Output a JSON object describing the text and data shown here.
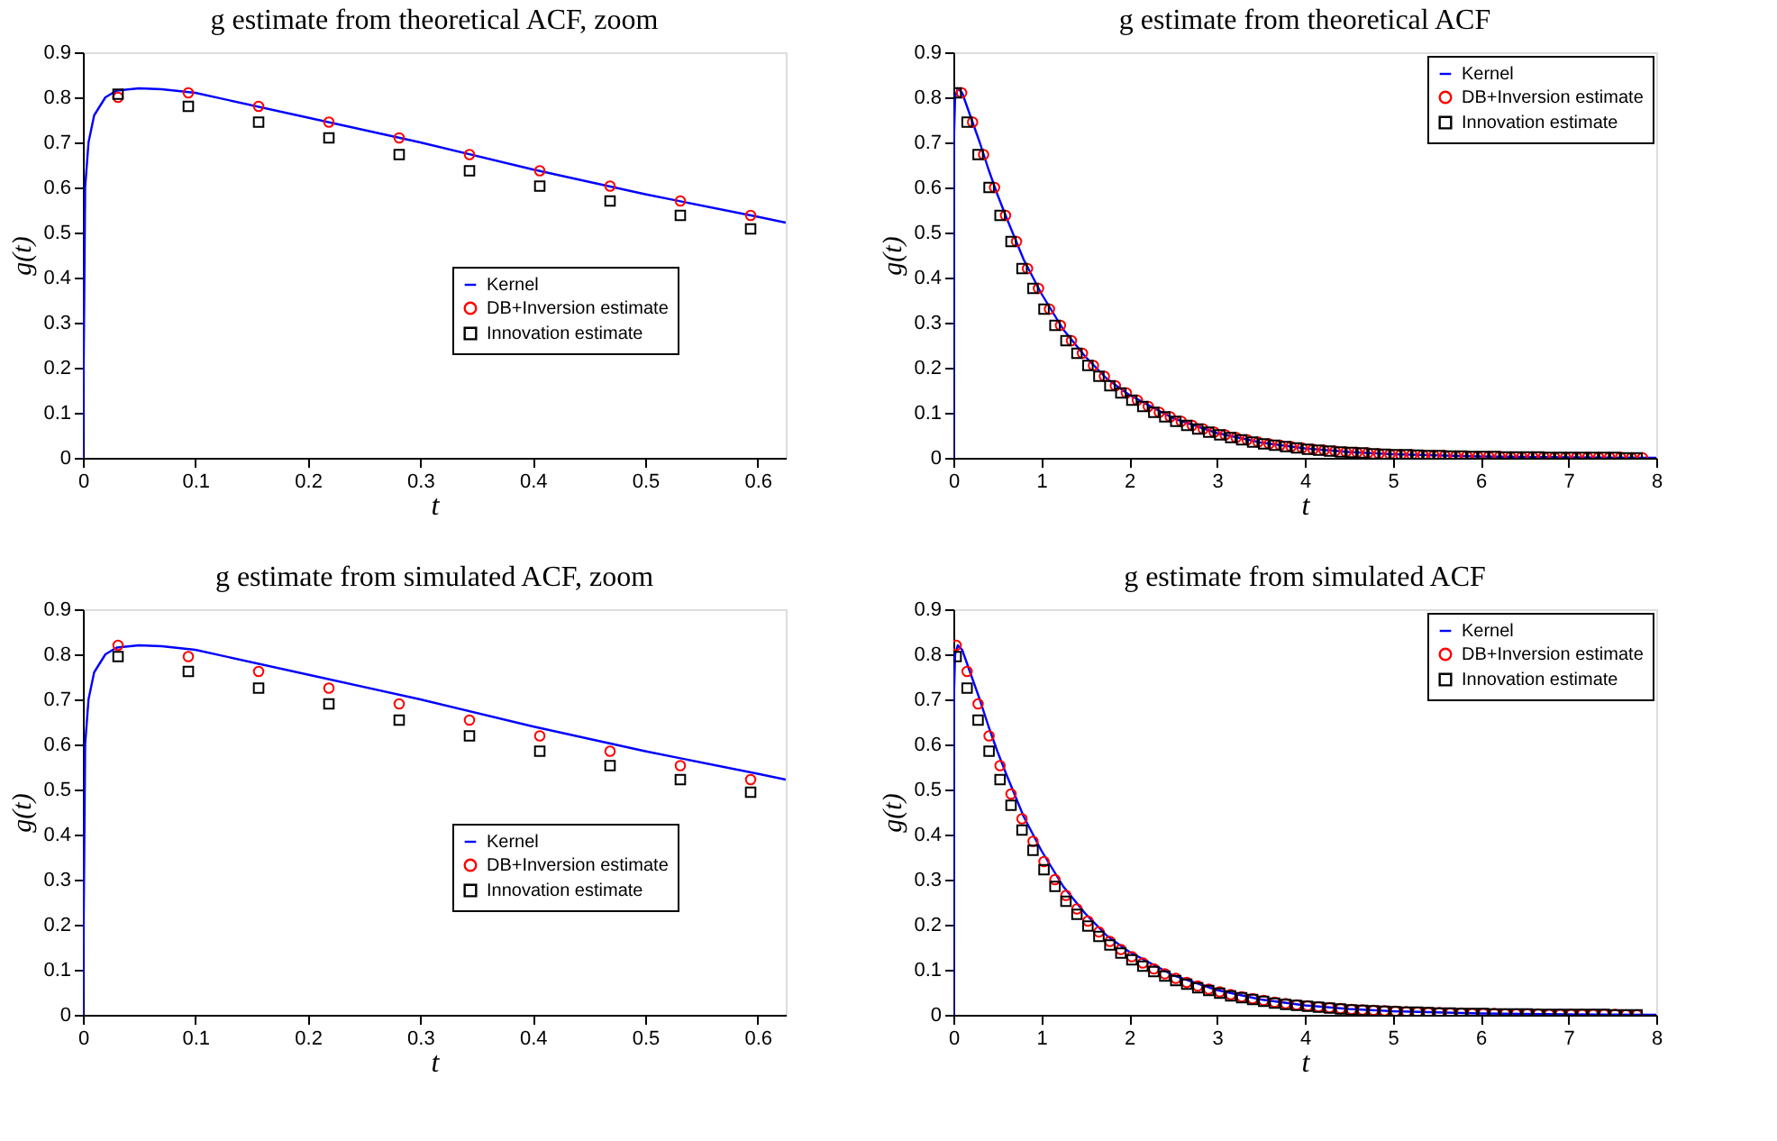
{
  "chart_data": [
    {
      "type": "line",
      "title": "g estimate from theoretical ACF, zoom",
      "xlabel": "t",
      "ylabel": "g(t)",
      "xlim": [
        0,
        0.625
      ],
      "xticks": [
        0,
        0.1,
        0.2,
        0.3,
        0.4,
        0.5,
        0.6
      ],
      "ylim": [
        0,
        0.9
      ],
      "yticks": [
        0,
        0.1,
        0.2,
        0.3,
        0.4,
        0.5,
        0.6,
        0.7,
        0.8,
        0.9
      ],
      "legend": "right",
      "x": [
        0.03125,
        0.09375,
        0.15625,
        0.21875,
        0.28125,
        0.34375,
        0.40625,
        0.46875,
        0.53125,
        0.59375
      ],
      "series": [
        {
          "name": "Kernel",
          "type": "line",
          "color": "#0000ff",
          "x": [
            0,
            0.002,
            0.005,
            0.01,
            0.02,
            0.03,
            0.05,
            0.07,
            0.1,
            0.2,
            0.3,
            0.4,
            0.5,
            0.6,
            0.625
          ],
          "values": [
            0,
            0.6,
            0.7,
            0.76,
            0.8,
            0.815,
            0.82,
            0.818,
            0.81,
            0.755,
            0.7,
            0.64,
            0.585,
            0.535,
            0.522
          ]
        },
        {
          "name": "DB+Inversion estimate",
          "type": "scatter",
          "marker": "circle",
          "color": "#ff0000",
          "values": [
            0.8,
            0.81,
            0.78,
            0.745,
            0.71,
            0.673,
            0.637,
            0.603,
            0.57,
            0.538
          ]
        },
        {
          "name": "Innovation estimate",
          "type": "scatter",
          "marker": "square",
          "color": "#000000",
          "values": [
            0.807,
            0.78,
            0.745,
            0.71,
            0.673,
            0.637,
            0.603,
            0.57,
            0.538,
            0.508
          ]
        }
      ]
    },
    {
      "type": "line",
      "title": "g estimate from theoretical ACF",
      "xlabel": "t",
      "ylabel": "g(t)",
      "xlim": [
        0,
        8
      ],
      "xticks": [
        0,
        1,
        2,
        3,
        4,
        5,
        6,
        7,
        8
      ],
      "ylim": [
        0,
        0.9
      ],
      "yticks": [
        0,
        0.1,
        0.2,
        0.3,
        0.4,
        0.5,
        0.6,
        0.7,
        0.8,
        0.9
      ],
      "legend": "top right",
      "series": [
        {
          "name": "Kernel",
          "type": "line",
          "color": "#0000ff",
          "x": [
            0,
            0.005,
            0.02,
            0.05,
            0.1,
            0.2,
            0.3,
            0.4,
            0.5,
            0.6,
            0.8,
            1,
            1.25,
            1.5,
            1.75,
            2,
            2.5,
            3,
            3.5,
            4,
            4.5,
            5,
            6,
            7,
            8
          ],
          "values": [
            0,
            0.7,
            0.8,
            0.82,
            0.81,
            0.755,
            0.7,
            0.64,
            0.585,
            0.535,
            0.44,
            0.365,
            0.285,
            0.225,
            0.175,
            0.14,
            0.088,
            0.055,
            0.034,
            0.021,
            0.013,
            0.008,
            0.003,
            0.001,
            0
          ]
        },
        {
          "name": "DB+Inversion estimate",
          "type": "scatter",
          "marker": "circle",
          "color": "#ff0000",
          "x": [
            0.09375,
            0.21875,
            0.34375,
            0.46875,
            0.59375,
            0.71875,
            0.84375,
            0.96875,
            1.09375,
            1.21875,
            1.34375,
            1.46875,
            1.59375,
            1.71875,
            1.84375,
            1.96875,
            2.09375,
            2.21875,
            2.34375,
            2.46875,
            2.59375,
            2.71875,
            2.84375,
            2.96875,
            3.09375,
            3.21875,
            3.34375,
            3.46875,
            3.59375,
            3.71875,
            3.84375,
            3.96875,
            4.09375,
            4.21875,
            4.34375,
            4.46875,
            4.59375,
            4.71875,
            4.84375,
            4.96875,
            5.09375,
            5.21875,
            5.34375,
            5.46875,
            5.59375,
            5.71875,
            5.84375,
            5.96875,
            6.09375,
            6.21875,
            6.34375,
            6.46875,
            6.59375,
            6.71875,
            6.84375,
            6.96875,
            7.09375,
            7.21875,
            7.34375,
            7.46875,
            7.59375,
            7.71875,
            7.84375
          ],
          "values": [
            0.81,
            0.745,
            0.673,
            0.6,
            0.538,
            0.48,
            0.42,
            0.376,
            0.33,
            0.294,
            0.26,
            0.232,
            0.205,
            0.181,
            0.16,
            0.144,
            0.128,
            0.114,
            0.101,
            0.091,
            0.081,
            0.072,
            0.064,
            0.057,
            0.051,
            0.045,
            0.04,
            0.035,
            0.031,
            0.028,
            0.025,
            0.022,
            0.019,
            0.017,
            0.015,
            0.013,
            0.012,
            0.011,
            0.009,
            0.008,
            0.007,
            0.007,
            0.006,
            0.005,
            0.005,
            0.004,
            0.004,
            0.003,
            0.003,
            0.003,
            0.002,
            0.002,
            0.002,
            0.002,
            0.001,
            0.001,
            0.001,
            0.001,
            0.001,
            0.001,
            0.001,
            0,
            0
          ]
        },
        {
          "name": "Innovation estimate",
          "type": "scatter",
          "marker": "square",
          "color": "#000000",
          "x": [
            0.03125,
            0.15625,
            0.28125,
            0.40625,
            0.53125,
            0.65625,
            0.78125,
            0.90625,
            1.03125,
            1.15625,
            1.28125,
            1.40625,
            1.53125,
            1.65625,
            1.78125,
            1.90625,
            2.03125,
            2.15625,
            2.28125,
            2.40625,
            2.53125,
            2.65625,
            2.78125,
            2.90625,
            3.03125,
            3.15625,
            3.28125,
            3.40625,
            3.53125,
            3.65625,
            3.78125,
            3.90625,
            4.03125,
            4.15625,
            4.28125,
            4.40625,
            4.53125,
            4.65625,
            4.78125,
            4.90625,
            5.03125,
            5.15625,
            5.28125,
            5.40625,
            5.53125,
            5.65625,
            5.78125,
            5.90625,
            6.03125,
            6.15625,
            6.28125,
            6.40625,
            6.53125,
            6.65625,
            6.78125,
            6.90625,
            7.03125,
            7.15625,
            7.28125,
            7.40625,
            7.53125,
            7.65625,
            7.78125
          ],
          "values": [
            0.81,
            0.745,
            0.673,
            0.6,
            0.538,
            0.48,
            0.42,
            0.376,
            0.33,
            0.294,
            0.26,
            0.232,
            0.205,
            0.181,
            0.16,
            0.144,
            0.128,
            0.114,
            0.101,
            0.091,
            0.081,
            0.072,
            0.064,
            0.057,
            0.051,
            0.045,
            0.04,
            0.035,
            0.031,
            0.028,
            0.025,
            0.022,
            0.019,
            0.017,
            0.015,
            0.013,
            0.012,
            0.011,
            0.009,
            0.008,
            0.007,
            0.007,
            0.006,
            0.005,
            0.005,
            0.004,
            0.004,
            0.003,
            0.003,
            0.003,
            0.002,
            0.002,
            0.002,
            0.002,
            0.001,
            0.001,
            0.001,
            0.001,
            0.001,
            0.001,
            0.001,
            0,
            0
          ]
        }
      ]
    },
    {
      "type": "line",
      "title": "g estimate from simulated ACF, zoom",
      "xlabel": "t",
      "ylabel": "g(t)",
      "xlim": [
        0,
        0.625
      ],
      "xticks": [
        0,
        0.1,
        0.2,
        0.3,
        0.4,
        0.5,
        0.6
      ],
      "ylim": [
        0,
        0.9
      ],
      "yticks": [
        0,
        0.1,
        0.2,
        0.3,
        0.4,
        0.5,
        0.6,
        0.7,
        0.8,
        0.9
      ],
      "legend": "right",
      "x": [
        0.03125,
        0.09375,
        0.15625,
        0.21875,
        0.28125,
        0.34375,
        0.40625,
        0.46875,
        0.53125,
        0.59375
      ],
      "series": [
        {
          "name": "Kernel",
          "type": "line",
          "color": "#0000ff",
          "x": [
            0,
            0.002,
            0.005,
            0.01,
            0.02,
            0.03,
            0.05,
            0.07,
            0.1,
            0.2,
            0.3,
            0.4,
            0.5,
            0.6,
            0.625
          ],
          "values": [
            0,
            0.6,
            0.7,
            0.76,
            0.8,
            0.815,
            0.82,
            0.818,
            0.81,
            0.755,
            0.7,
            0.64,
            0.585,
            0.535,
            0.522
          ]
        },
        {
          "name": "DB+Inversion estimate",
          "type": "scatter",
          "marker": "circle",
          "color": "#ff0000",
          "values": [
            0.82,
            0.795,
            0.762,
            0.725,
            0.69,
            0.654,
            0.619,
            0.585,
            0.553,
            0.522
          ]
        },
        {
          "name": "Innovation estimate",
          "type": "scatter",
          "marker": "square",
          "color": "#000000",
          "values": [
            0.795,
            0.762,
            0.725,
            0.69,
            0.654,
            0.619,
            0.585,
            0.553,
            0.522,
            0.494
          ]
        }
      ]
    },
    {
      "type": "line",
      "title": "g estimate from simulated ACF",
      "xlabel": "t",
      "ylabel": "g(t)",
      "xlim": [
        0,
        8
      ],
      "xticks": [
        0,
        1,
        2,
        3,
        4,
        5,
        6,
        7,
        8
      ],
      "ylim": [
        0,
        0.9
      ],
      "yticks": [
        0,
        0.1,
        0.2,
        0.3,
        0.4,
        0.5,
        0.6,
        0.7,
        0.8,
        0.9
      ],
      "legend": "top right",
      "x": [
        0.03125,
        0.15625,
        0.28125,
        0.40625,
        0.53125,
        0.65625,
        0.78125,
        0.90625,
        1.03125,
        1.15625,
        1.28125,
        1.40625,
        1.53125,
        1.65625,
        1.78125,
        1.90625,
        2.03125,
        2.15625,
        2.28125,
        2.40625,
        2.53125,
        2.65625,
        2.78125,
        2.90625,
        3.03125,
        3.15625,
        3.28125,
        3.40625,
        3.53125,
        3.65625,
        3.78125,
        3.90625,
        4.03125,
        4.15625,
        4.28125,
        4.40625,
        4.53125,
        4.65625,
        4.78125,
        4.90625,
        5.03125,
        5.15625,
        5.28125,
        5.40625,
        5.53125,
        5.65625,
        5.78125,
        5.90625,
        6.03125,
        6.15625,
        6.28125,
        6.40625,
        6.53125,
        6.65625,
        6.78125,
        6.90625,
        7.03125,
        7.15625,
        7.28125,
        7.40625,
        7.53125,
        7.65625,
        7.78125
      ],
      "series": [
        {
          "name": "Kernel",
          "type": "line",
          "color": "#0000ff",
          "x": [
            0,
            0.005,
            0.02,
            0.05,
            0.1,
            0.2,
            0.3,
            0.4,
            0.5,
            0.6,
            0.8,
            1,
            1.25,
            1.5,
            1.75,
            2,
            2.5,
            3,
            3.5,
            4,
            4.5,
            5,
            6,
            7,
            8
          ],
          "values": [
            0,
            0.7,
            0.8,
            0.82,
            0.81,
            0.755,
            0.7,
            0.64,
            0.585,
            0.535,
            0.44,
            0.365,
            0.285,
            0.225,
            0.175,
            0.14,
            0.088,
            0.055,
            0.034,
            0.021,
            0.013,
            0.008,
            0.003,
            0.001,
            0
          ]
        },
        {
          "name": "DB+Inversion estimate",
          "type": "scatter",
          "marker": "circle",
          "color": "#ff0000",
          "values": [
            0.82,
            0.762,
            0.69,
            0.619,
            0.553,
            0.49,
            0.435,
            0.385,
            0.34,
            0.3,
            0.265,
            0.235,
            0.208,
            0.184,
            0.163,
            0.145,
            0.129,
            0.115,
            0.102,
            0.091,
            0.081,
            0.072,
            0.064,
            0.057,
            0.051,
            0.045,
            0.04,
            0.036,
            0.032,
            0.028,
            0.025,
            0.022,
            0.02,
            0.018,
            0.016,
            0.014,
            0.012,
            0.011,
            0.01,
            0.009,
            0.008,
            0.007,
            0.006,
            0.005,
            0.005,
            0.004,
            0.004,
            0.003,
            0.003,
            0.003,
            0.002,
            0.002,
            0.002,
            0.002,
            0.001,
            0.001,
            0.001,
            0.001,
            0.001,
            0.001,
            0.001,
            0,
            0
          ]
        },
        {
          "name": "Innovation estimate",
          "type": "scatter",
          "marker": "square",
          "color": "#000000",
          "values": [
            0.795,
            0.725,
            0.654,
            0.585,
            0.522,
            0.465,
            0.41,
            0.365,
            0.322,
            0.285,
            0.252,
            0.223,
            0.197,
            0.174,
            0.155,
            0.137,
            0.122,
            0.108,
            0.096,
            0.086,
            0.076,
            0.068,
            0.06,
            0.054,
            0.048,
            0.042,
            0.038,
            0.034,
            0.03,
            0.026,
            0.023,
            0.021,
            0.019,
            0.017,
            0.015,
            0.013,
            0.011,
            0.01,
            0.009,
            0.008,
            0.007,
            0.006,
            0.006,
            0.005,
            0.004,
            0.004,
            0.003,
            0.003,
            0.003,
            0.002,
            0.002,
            0.002,
            0.002,
            0.001,
            0.001,
            0.001,
            0.001,
            0.001,
            0.001,
            0.001,
            0,
            0,
            0
          ]
        }
      ]
    }
  ]
}
